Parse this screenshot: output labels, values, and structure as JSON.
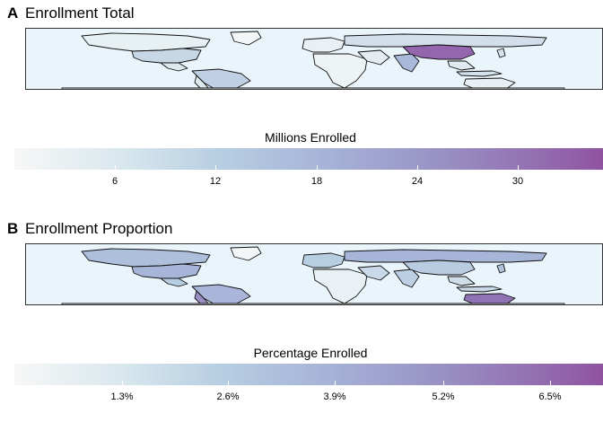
{
  "panels": {
    "a": {
      "tag": "A",
      "title": "Enrollment Total",
      "legend_title": "Millions Enrolled",
      "ticks": [
        "6",
        "12",
        "18",
        "24",
        "30"
      ],
      "scale": {
        "min": 0,
        "max": 35,
        "values": [
          6,
          12,
          18,
          24,
          30
        ]
      },
      "colors": [
        "#f7f7f7",
        "#b7cee2",
        "#9a96c7",
        "#9053a2"
      ]
    },
    "b": {
      "tag": "B",
      "title": "Enrollment Proportion",
      "legend_title": "Percentage Enrolled",
      "ticks": [
        "1.3%",
        "2.6%",
        "3.9%",
        "5.2%",
        "6.5%"
      ],
      "scale": {
        "min": 0,
        "max": 7.5,
        "values": [
          1.3,
          2.6,
          3.9,
          5.2,
          6.5
        ]
      },
      "colors": [
        "#f7f7f7",
        "#b7cee2",
        "#9a96c7",
        "#9053a2"
      ]
    }
  }
}
